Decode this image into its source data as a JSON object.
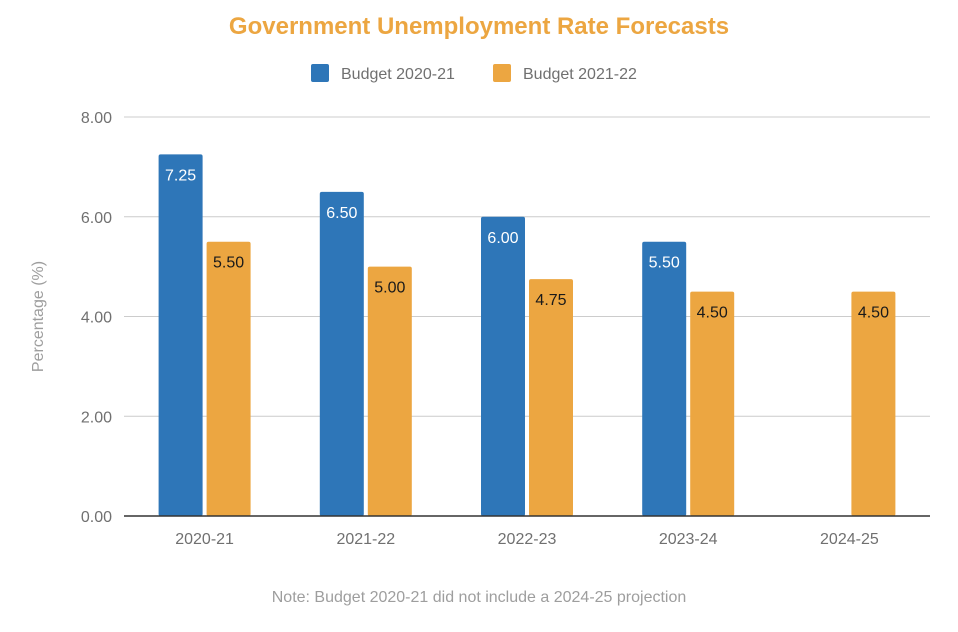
{
  "chart_data": {
    "type": "bar",
    "title": "Government Unemployment Rate Forecasts",
    "ylabel": "Percentage (%)",
    "xlabel": "",
    "ylim": [
      0,
      8
    ],
    "yticks": [
      "0.00",
      "2.00",
      "4.00",
      "6.00",
      "8.00"
    ],
    "categories": [
      "2020-21",
      "2021-22",
      "2022-23",
      "2023-24",
      "2024-25"
    ],
    "series": [
      {
        "name": "Budget 2020-21",
        "color": "#2e76b8",
        "values": [
          7.25,
          6.5,
          6.0,
          5.5,
          null
        ],
        "labels": [
          "7.25",
          "6.50",
          "6.00",
          "5.50",
          ""
        ]
      },
      {
        "name": "Budget 2021-22",
        "color": "#eca641",
        "values": [
          5.5,
          5.0,
          4.75,
          4.5,
          4.5
        ],
        "labels": [
          "5.50",
          "5.00",
          "4.75",
          "4.50",
          "4.50"
        ]
      }
    ],
    "legend": "top",
    "grid": true,
    "note": "Note: Budget 2020-21 did not include a 2024-25 projection"
  }
}
